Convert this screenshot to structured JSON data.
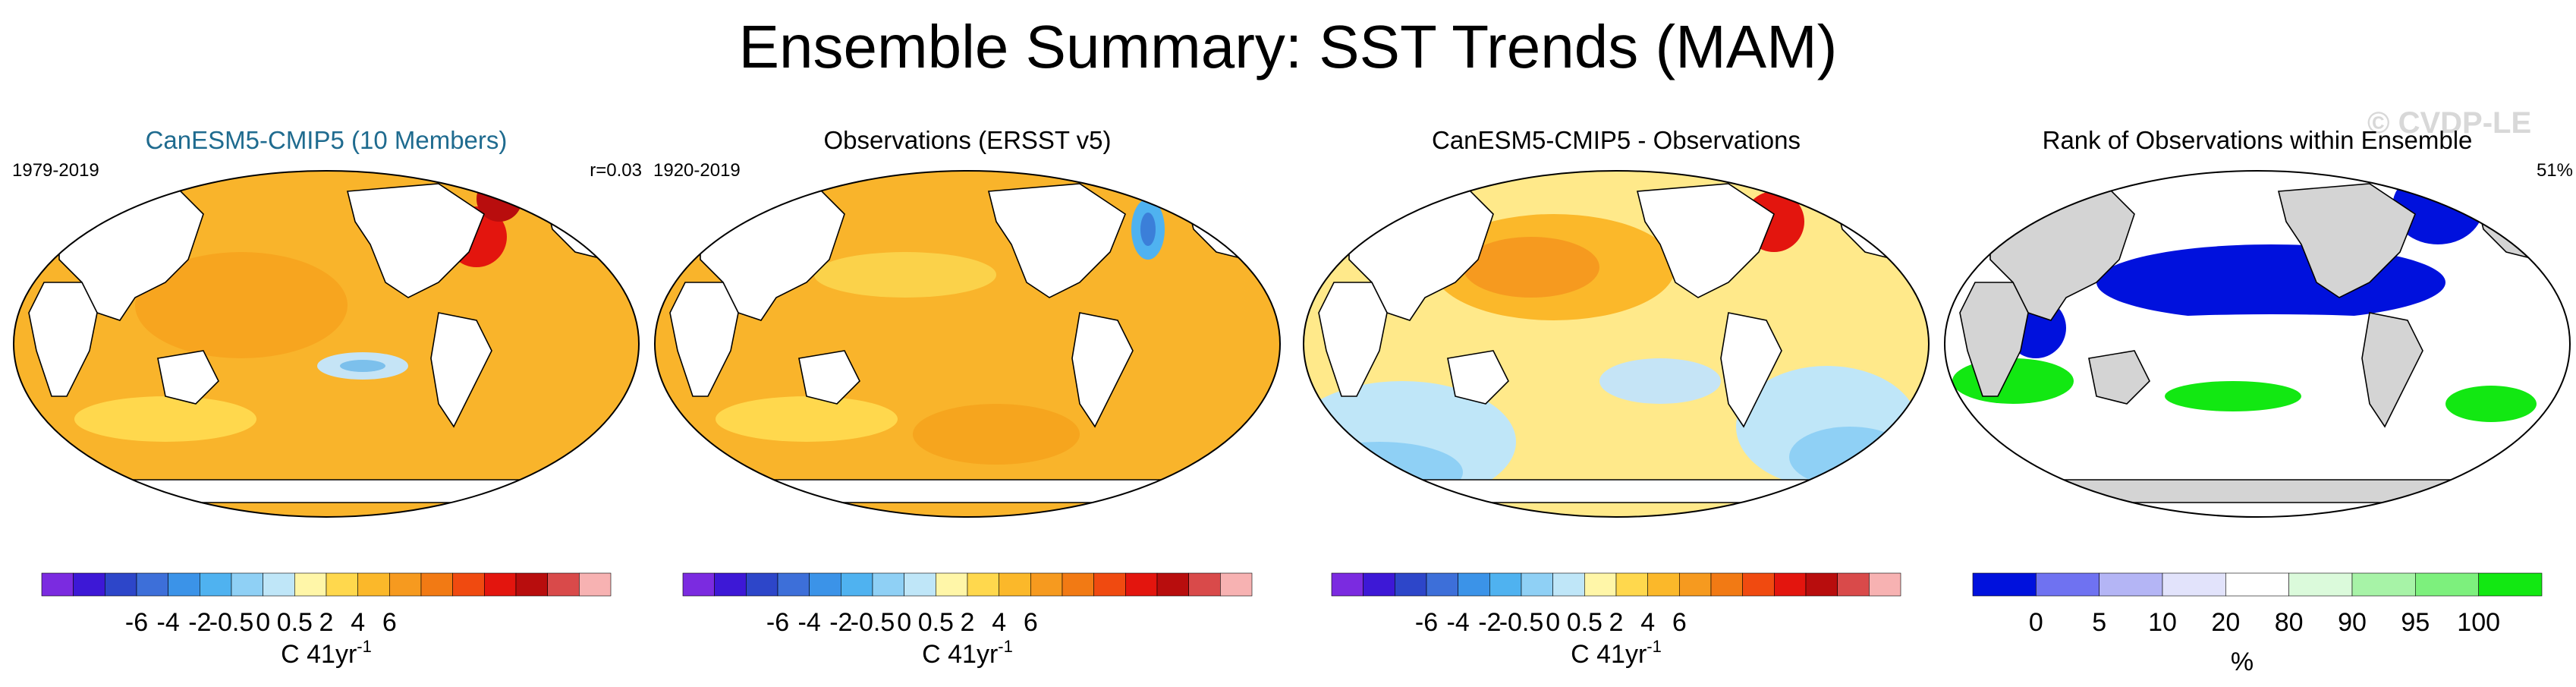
{
  "title": "Ensemble Summary: SST Trends (MAM)",
  "watermark": "© CVDP-LE",
  "colors": {
    "land": "#ffffff",
    "land_gray": "#d4d4d4",
    "coast": "#000000"
  },
  "trend_colorbar": {
    "ticks": [
      "-6",
      "-4",
      "-2",
      "-0.5",
      "0",
      "0.5",
      "2",
      "4",
      "6"
    ],
    "unit_main": "C 41yr",
    "unit_sup": "-1",
    "colors": [
      "#7b2be0",
      "#3d18d6",
      "#2d46c9",
      "#3d6fd9",
      "#3b93e8",
      "#4fb2f0",
      "#8fd0f5",
      "#bfe6f8",
      "#fff6a8",
      "#ffd84d",
      "#fbb82a",
      "#f69a1f",
      "#f27a14",
      "#f04a10",
      "#e3150e",
      "#b80d0d",
      "#d94a4a",
      "#f7b2b2"
    ]
  },
  "rank_colorbar": {
    "ticks": [
      "0",
      "5",
      "10",
      "20",
      "80",
      "90",
      "95",
      "100"
    ],
    "unit": "%",
    "colors": [
      "#0011dd",
      "#6f72f1",
      "#b4b5f5",
      "#e2e3fb",
      "#ffffff",
      "#dbfadb",
      "#a7f3a7",
      "#7df07d",
      "#12e812"
    ]
  },
  "panels": [
    {
      "title": "CanESM5-CMIP5 (10 Members)",
      "title_color": "#1f6b8f",
      "left_label": "1979-2019",
      "right_label": "r=0.03",
      "style": "model"
    },
    {
      "title": "Observations (ERSST v5)",
      "title_color": "#000000",
      "left_label": "1920-2019",
      "right_label": "",
      "style": "obs"
    },
    {
      "title": "CanESM5-CMIP5 - Observations",
      "title_color": "#000000",
      "left_label": "",
      "right_label": "",
      "style": "diff"
    },
    {
      "title": "Rank of Observations within Ensemble",
      "title_color": "#000000",
      "left_label": "",
      "right_label": "51%",
      "style": "rank"
    }
  ]
}
